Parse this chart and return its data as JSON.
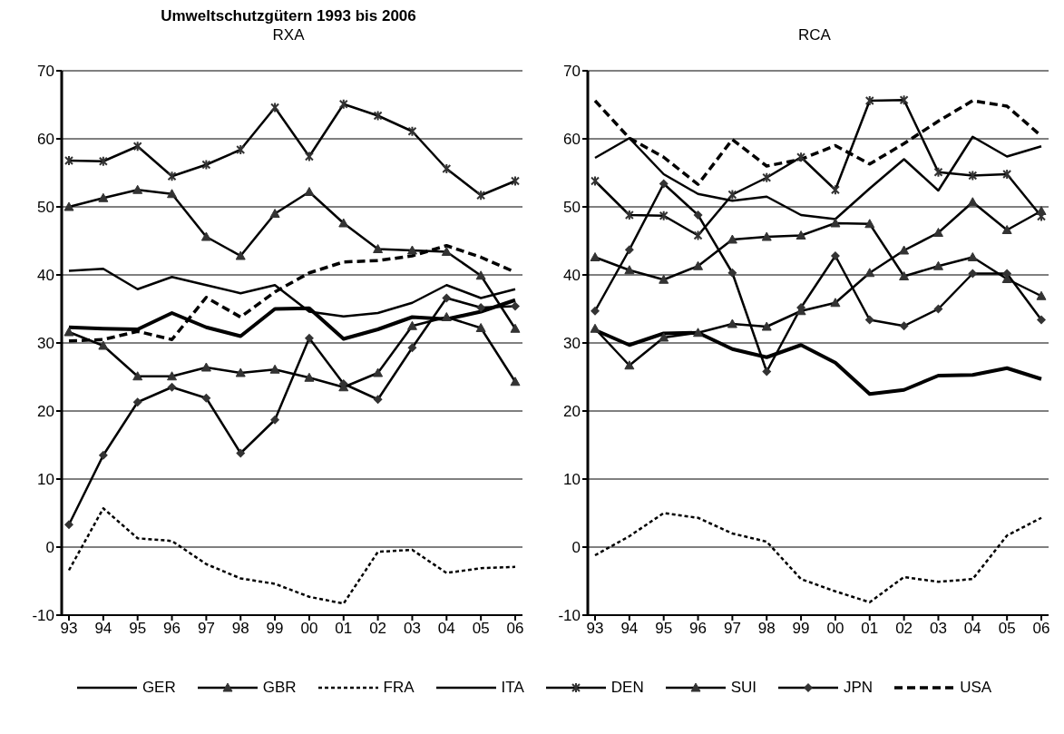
{
  "chart_data": [
    {
      "type": "line",
      "title": "Umweltschutzgütern 1993 bis 2006",
      "subtitle": "RXA",
      "categories": [
        "93",
        "94",
        "95",
        "96",
        "97",
        "98",
        "99",
        "00",
        "01",
        "02",
        "03",
        "04",
        "05",
        "06"
      ],
      "ylim": [
        -10,
        70
      ],
      "yticks": [
        -10,
        0,
        10,
        20,
        30,
        40,
        50,
        60,
        70
      ],
      "grid": "y",
      "legend": "bottom",
      "series": [
        {
          "name": "GER",
          "color": "#000000",
          "marker": "none",
          "line_style": "solid",
          "values": [
            32.3,
            32.1,
            32.0,
            34.4,
            32.3,
            31.0,
            35.0,
            35.1,
            30.6,
            32.0,
            33.8,
            33.5,
            34.6,
            36.3
          ]
        },
        {
          "name": "GBR",
          "color": "#000000",
          "marker": "triangle",
          "line_style": "solid",
          "values": [
            31.6,
            29.6,
            25.1,
            25.1,
            26.4,
            25.6,
            26.1,
            24.9,
            23.5,
            25.6,
            32.5,
            33.8,
            32.2,
            24.3
          ]
        },
        {
          "name": "FRA",
          "color": "#000000",
          "marker": "none",
          "line_style": "dotted",
          "values": [
            -3.4,
            5.7,
            1.3,
            0.9,
            -2.5,
            -4.6,
            -5.4,
            -7.3,
            -8.3,
            -0.7,
            -0.4,
            -3.8,
            -3.1,
            -2.9
          ]
        },
        {
          "name": "ITA",
          "color": "#000000",
          "marker": "none",
          "line_style": "solid",
          "values": [
            40.6,
            40.9,
            37.9,
            39.7,
            38.5,
            37.3,
            38.5,
            34.6,
            33.9,
            34.4,
            35.9,
            38.5,
            36.6,
            37.9
          ]
        },
        {
          "name": "DEN",
          "color": "#000000",
          "marker": "cross",
          "line_style": "solid",
          "values": [
            56.8,
            56.7,
            58.9,
            54.5,
            56.2,
            58.4,
            64.6,
            57.4,
            65.1,
            63.4,
            61.1,
            55.6,
            51.7,
            53.8
          ]
        },
        {
          "name": "SUI",
          "color": "#000000",
          "marker": "triangle",
          "line_style": "solid",
          "values": [
            50.0,
            51.3,
            52.5,
            51.9,
            45.6,
            42.8,
            49.0,
            52.2,
            47.6,
            43.8,
            43.6,
            43.4,
            39.9,
            32.1
          ]
        },
        {
          "name": "JPN",
          "color": "#000000",
          "marker": "diamond",
          "line_style": "solid",
          "values": [
            3.3,
            13.5,
            21.3,
            23.5,
            21.9,
            13.8,
            18.7,
            30.7,
            24.0,
            21.7,
            29.3,
            36.6,
            35.2,
            35.4
          ]
        },
        {
          "name": "USA",
          "color": "#000000",
          "marker": "none",
          "line_style": "dashed",
          "values": [
            30.3,
            30.5,
            31.7,
            30.5,
            36.7,
            33.8,
            37.5,
            40.3,
            41.9,
            42.1,
            42.8,
            44.3,
            42.6,
            40.4
          ]
        }
      ]
    },
    {
      "type": "line",
      "title": "RCA",
      "categories": [
        "93",
        "94",
        "95",
        "96",
        "97",
        "98",
        "99",
        "00",
        "01",
        "02",
        "03",
        "04",
        "05",
        "06"
      ],
      "ylim": [
        -10,
        70
      ],
      "yticks": [
        -10,
        0,
        10,
        20,
        30,
        40,
        50,
        60,
        70
      ],
      "grid": "y",
      "series": [
        {
          "name": "GER",
          "color": "#000000",
          "marker": "none",
          "line_style": "solid",
          "values": [
            31.9,
            29.7,
            31.4,
            31.5,
            29.1,
            27.9,
            29.7,
            27.1,
            22.5,
            23.1,
            25.2,
            25.3,
            26.3,
            24.7
          ]
        },
        {
          "name": "GBR",
          "color": "#000000",
          "marker": "triangle",
          "line_style": "solid",
          "values": [
            32.1,
            26.7,
            30.8,
            31.5,
            32.8,
            32.4,
            34.7,
            35.9,
            40.3,
            43.6,
            46.2,
            50.7,
            46.6,
            49.4
          ]
        },
        {
          "name": "FRA",
          "color": "#000000",
          "marker": "none",
          "line_style": "dotted",
          "values": [
            -1.2,
            1.6,
            5.0,
            4.3,
            2.0,
            0.8,
            -4.7,
            -6.5,
            -8.1,
            -4.4,
            -5.1,
            -4.7,
            1.7,
            4.3
          ]
        },
        {
          "name": "ITA",
          "color": "#000000",
          "marker": "none",
          "line_style": "solid",
          "values": [
            57.2,
            60.1,
            54.8,
            51.9,
            50.9,
            51.5,
            48.8,
            48.2,
            52.7,
            57.0,
            52.4,
            60.3,
            57.4,
            58.9
          ]
        },
        {
          "name": "DEN",
          "color": "#000000",
          "marker": "cross",
          "line_style": "solid",
          "values": [
            53.8,
            48.8,
            48.7,
            45.8,
            51.8,
            54.3,
            57.3,
            52.5,
            65.6,
            65.7,
            55.1,
            54.6,
            54.8,
            48.6
          ]
        },
        {
          "name": "SUI",
          "color": "#000000",
          "marker": "triangle",
          "line_style": "solid",
          "values": [
            42.6,
            40.7,
            39.3,
            41.3,
            45.2,
            45.6,
            45.8,
            47.6,
            47.5,
            39.8,
            41.3,
            42.6,
            39.4,
            36.9
          ]
        },
        {
          "name": "JPN",
          "color": "#000000",
          "marker": "diamond",
          "line_style": "solid",
          "values": [
            34.7,
            43.7,
            53.4,
            48.8,
            40.3,
            25.8,
            35.2,
            42.8,
            33.4,
            32.5,
            35.0,
            40.2,
            40.2,
            33.4
          ]
        },
        {
          "name": "USA",
          "color": "#000000",
          "marker": "none",
          "line_style": "dashed",
          "values": [
            65.6,
            60.1,
            57.3,
            53.3,
            59.9,
            56.0,
            57.0,
            59.0,
            56.3,
            59.3,
            62.6,
            65.6,
            64.8,
            60.4
          ]
        }
      ]
    }
  ]
}
